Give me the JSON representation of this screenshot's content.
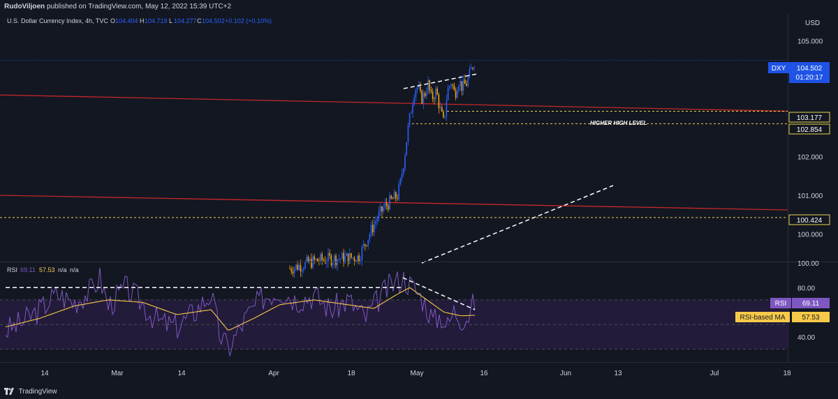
{
  "header": {
    "author": "RudoViljoen",
    "published_text": "published on TradingView.com, May 12, 2022 15:39 UTC+2"
  },
  "footer": {
    "brand": "TradingView"
  },
  "legend": {
    "symbol": "U.S. Dollar Currency Index, 4h, TVC",
    "o_label": "O",
    "o": "104.404",
    "h_label": "H",
    "h": "104.719",
    "l_label": "L",
    "l": "104.277",
    "c_label": "C",
    "c": "104.502",
    "change": "+0.102 (+0.10%)"
  },
  "rsi_legend": {
    "label": "RSI",
    "rsi": "69.11",
    "ma": "57.53",
    "na1": "n/a",
    "na2": "n/a"
  },
  "axis": {
    "currency": "USD",
    "price_ticks": [
      "105.000",
      "104.000",
      "102.000",
      "101.000",
      "100.000"
    ],
    "rsi_ticks": [
      "100.00",
      "80.00",
      "40.00"
    ],
    "x_ticks": [
      "14",
      "Mar",
      "14",
      "Apr",
      "18",
      "May",
      "16",
      "Jun",
      "13",
      "Jul",
      "18"
    ]
  },
  "badges": {
    "symbol": "DXY",
    "price": "104.502",
    "countdown": "01:20:17",
    "level1": "103.177",
    "level2": "102.854",
    "level3": "100.424",
    "rsi_label": "RSI",
    "rsi_value": "69.11",
    "ma_label": "RSI-based MA",
    "ma_value": "57.53"
  },
  "annotations": {
    "higher_high": "HIGHER HIGH LEVEL"
  },
  "colors": {
    "background": "#131722",
    "grid": "#1e222d",
    "up": "#2962ff",
    "down": "#f7a600",
    "resistance_line": "#c62828",
    "level_dash": "#e8d44d",
    "rsi_line": "#7e57c2",
    "rsi_ma": "#f7c948",
    "rsi_band": "#231b3a",
    "price_badge": "#1e53e5",
    "rsi_badge": "#7e57c2",
    "ma_badge": "#f7c948"
  },
  "chart_data": {
    "type": "candlestick",
    "price_range": [
      99.3,
      105.7
    ],
    "rsi_range": [
      20,
      100
    ],
    "bars": [
      [
        0,
        99.1
      ],
      [
        37,
        99.3
      ],
      [
        59,
        99.35
      ],
      [
        100,
        99.4
      ],
      [
        126,
        100.4
      ],
      [
        137,
        100.7
      ],
      [
        156,
        101.0
      ],
      [
        160,
        101.3
      ],
      [
        166,
        102.0
      ],
      [
        171,
        102.7
      ],
      [
        180,
        103.7
      ],
      [
        184,
        103.85
      ],
      [
        190,
        103.5
      ],
      [
        195,
        103.6
      ],
      [
        200,
        103.9
      ],
      [
        205,
        103.5
      ],
      [
        212,
        103.7
      ],
      [
        218,
        103.2
      ],
      [
        223,
        102.85
      ],
      [
        228,
        103.7
      ],
      [
        234,
        103.95
      ],
      [
        239,
        103.6
      ],
      [
        244,
        104.0
      ],
      [
        250,
        103.8
      ],
      [
        256,
        103.9
      ],
      [
        261,
        104.15
      ],
      [
        266,
        104.45
      ],
      [
        268,
        104.5
      ]
    ],
    "resistance_lines": [
      {
        "from": [
          0,
          103.6
        ],
        "to": [
          380,
          103.18
        ]
      },
      {
        "from": [
          0,
          101.0
        ],
        "to": [
          380,
          100.62
        ]
      }
    ],
    "levels": [
      103.177,
      102.854,
      100.424,
      104.502
    ],
    "rsi": [
      [
        0,
        45
      ],
      [
        10,
        52
      ],
      [
        20,
        62
      ],
      [
        30,
        75
      ],
      [
        40,
        68
      ],
      [
        50,
        78
      ],
      [
        55,
        88
      ],
      [
        60,
        65
      ],
      [
        70,
        80
      ],
      [
        78,
        70
      ],
      [
        85,
        58
      ],
      [
        90,
        52
      ],
      [
        100,
        48
      ],
      [
        110,
        60
      ],
      [
        120,
        75
      ],
      [
        125,
        42
      ],
      [
        130,
        30
      ],
      [
        140,
        55
      ],
      [
        150,
        72
      ],
      [
        160,
        78
      ],
      [
        170,
        70
      ],
      [
        180,
        74
      ],
      [
        190,
        62
      ],
      [
        200,
        70
      ],
      [
        210,
        55
      ],
      [
        220,
        75
      ],
      [
        225,
        82
      ],
      [
        232,
        88
      ],
      [
        238,
        80
      ],
      [
        244,
        70
      ],
      [
        250,
        52
      ],
      [
        254,
        58
      ],
      [
        258,
        48
      ],
      [
        262,
        62
      ],
      [
        266,
        55
      ],
      [
        270,
        57
      ],
      [
        274,
        69
      ]
    ],
    "rsi_ma": [
      [
        0,
        48
      ],
      [
        20,
        55
      ],
      [
        40,
        65
      ],
      [
        60,
        70
      ],
      [
        80,
        68
      ],
      [
        100,
        58
      ],
      [
        120,
        62
      ],
      [
        130,
        45
      ],
      [
        145,
        55
      ],
      [
        160,
        66
      ],
      [
        180,
        70
      ],
      [
        200,
        66
      ],
      [
        215,
        63
      ],
      [
        228,
        74
      ],
      [
        236,
        80
      ],
      [
        246,
        70
      ],
      [
        256,
        60
      ],
      [
        266,
        57
      ],
      [
        274,
        57.5
      ]
    ],
    "rsi_trendlines": [
      {
        "from": [
          0,
          80
        ],
        "to": [
          232,
          80
        ]
      },
      {
        "from": [
          232,
          88
        ],
        "to": [
          274,
          62
        ]
      }
    ]
  }
}
